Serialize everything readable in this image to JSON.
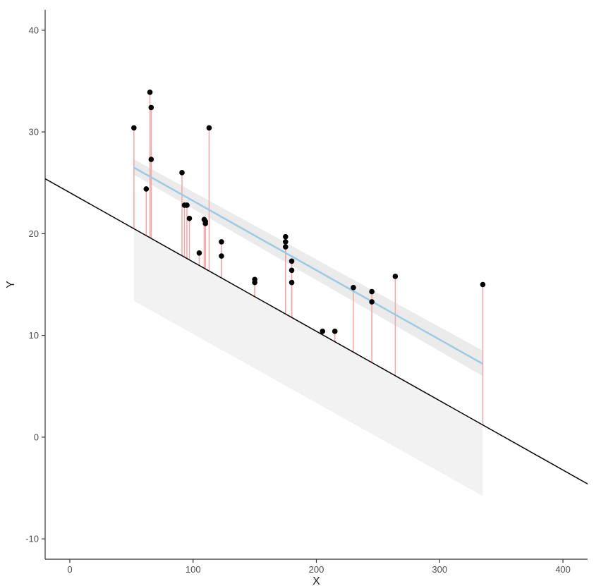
{
  "chart_data": {
    "type": "scatter",
    "xlabel": "X",
    "ylabel": "Y",
    "xlim": [
      -20,
      420
    ],
    "ylim": [
      -12,
      42
    ],
    "x_ticks": [
      0,
      100,
      200,
      300,
      400
    ],
    "y_ticks": [
      -10,
      0,
      10,
      20,
      30,
      40
    ],
    "grid": false,
    "points": [
      {
        "x": 52,
        "y": 30.4
      },
      {
        "x": 62,
        "y": 24.4
      },
      {
        "x": 65,
        "y": 33.9
      },
      {
        "x": 66,
        "y": 32.4
      },
      {
        "x": 66,
        "y": 27.3
      },
      {
        "x": 91,
        "y": 26.0
      },
      {
        "x": 93,
        "y": 22.8
      },
      {
        "x": 95,
        "y": 22.8
      },
      {
        "x": 97,
        "y": 21.5
      },
      {
        "x": 105,
        "y": 18.1
      },
      {
        "x": 109,
        "y": 21.4
      },
      {
        "x": 110,
        "y": 21.0
      },
      {
        "x": 110,
        "y": 21.2
      },
      {
        "x": 113,
        "y": 30.4
      },
      {
        "x": 123,
        "y": 19.2
      },
      {
        "x": 123,
        "y": 17.8
      },
      {
        "x": 150,
        "y": 15.2
      },
      {
        "x": 150,
        "y": 15.5
      },
      {
        "x": 175,
        "y": 19.7
      },
      {
        "x": 175,
        "y": 18.7
      },
      {
        "x": 175,
        "y": 19.2
      },
      {
        "x": 180,
        "y": 17.3
      },
      {
        "x": 180,
        "y": 16.4
      },
      {
        "x": 180,
        "y": 15.2
      },
      {
        "x": 205,
        "y": 10.4
      },
      {
        "x": 215,
        "y": 10.4
      },
      {
        "x": 230,
        "y": 14.7
      },
      {
        "x": 245,
        "y": 13.3
      },
      {
        "x": 245,
        "y": 14.3
      },
      {
        "x": 264,
        "y": 15.8
      },
      {
        "x": 335,
        "y": 15.0
      }
    ],
    "fitted_line": {
      "x": [
        52,
        335
      ],
      "y": [
        26.5,
        7.2
      ],
      "color": "#9ecae1"
    },
    "fitted_band": {
      "x": [
        52,
        335
      ],
      "upper": [
        27.3,
        8.5
      ],
      "lower": [
        25.8,
        6.0
      ],
      "color": "#ebebeb"
    },
    "reference_line": {
      "x": [
        -20,
        420
      ],
      "y": [
        25.4,
        -4.6
      ],
      "color": "#000000"
    },
    "reference_band": {
      "x": [
        52,
        335
      ],
      "upper": [
        20.5,
        1.2
      ],
      "lower": [
        13.4,
        -5.8
      ],
      "color": "#f2f2f2"
    },
    "residual_color": "#f4a6a6",
    "point_color": "#000000"
  }
}
